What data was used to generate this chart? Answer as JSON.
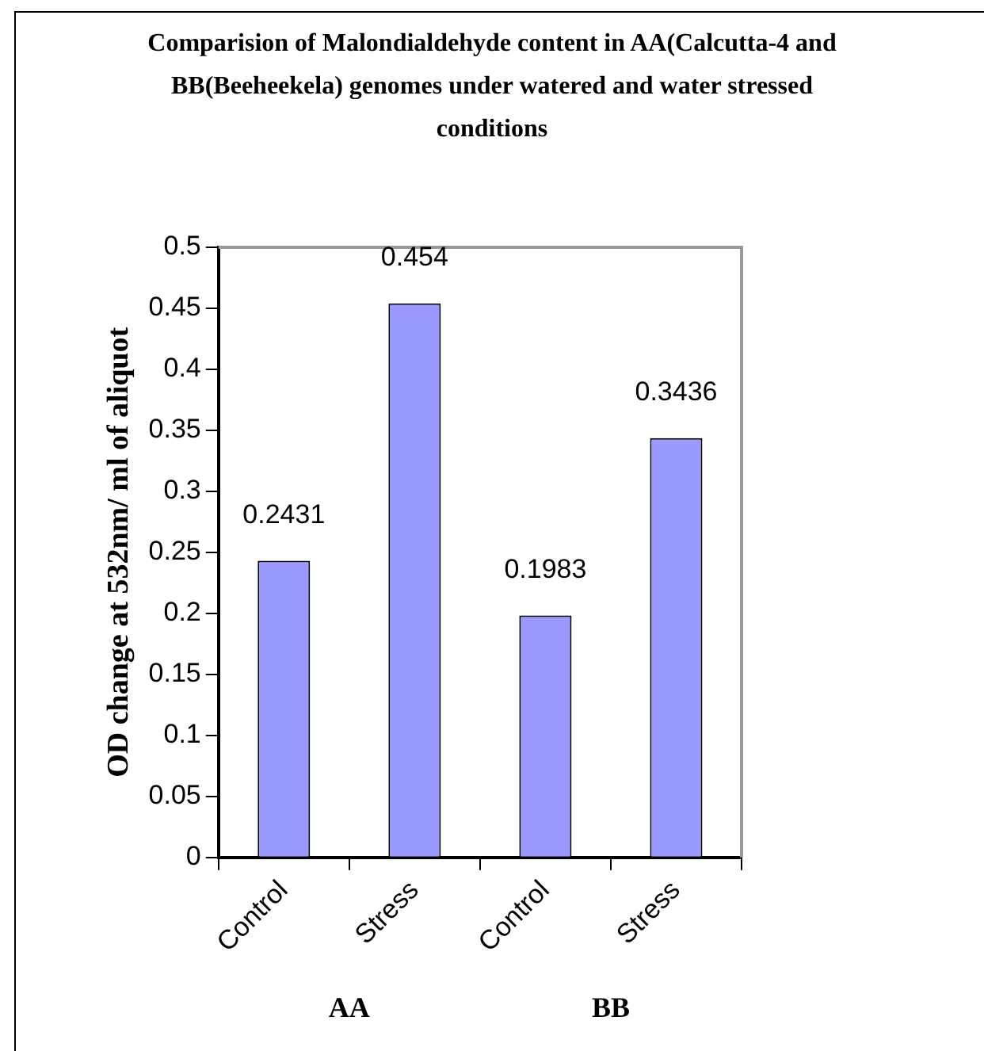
{
  "chart_data": {
    "type": "bar",
    "title": "Comparision of Malondialdehyde content in AA(Calcutta-4 and BB(Beeheekela) genomes under watered and water stressed conditions",
    "ylabel": "OD change at 532nm/ ml of aliquot",
    "categories": [
      "Control",
      "Stress",
      "Control",
      "Stress"
    ],
    "values": [
      0.2431,
      0.454,
      0.1983,
      0.3436
    ],
    "color": "#9999ff",
    "data_labels": true,
    "ylim": [
      0,
      0.5
    ],
    "yticks": [
      0,
      0.05,
      0.1,
      0.15,
      0.2,
      0.25,
      0.3,
      0.35,
      0.4,
      0.45,
      0.5
    ],
    "grid": false,
    "legend": false,
    "annotations": [
      "AA",
      "BB"
    ]
  }
}
